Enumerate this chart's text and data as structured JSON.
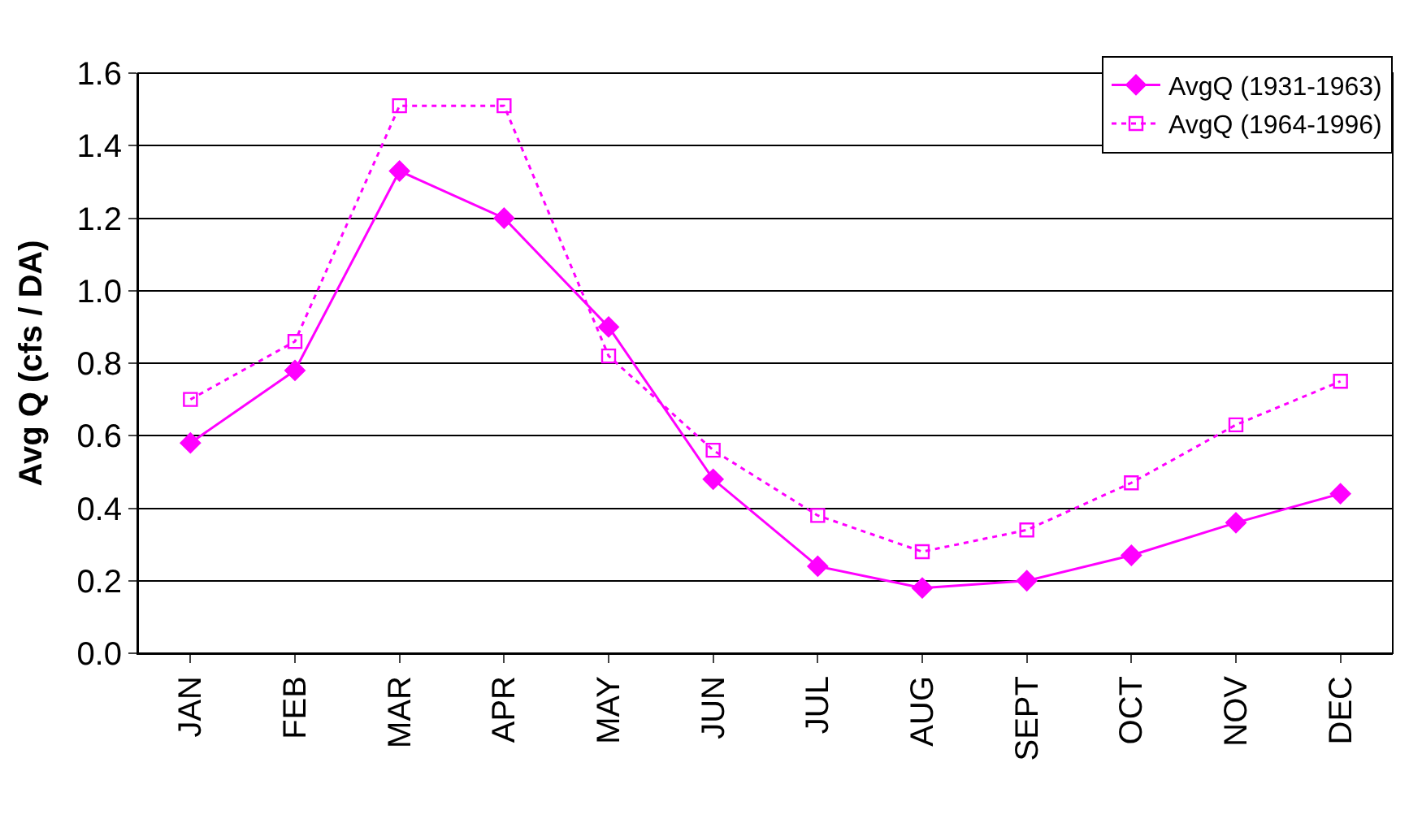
{
  "chart_data": {
    "type": "line",
    "ylabel": "Avg Q (cfs / DA)",
    "categories": [
      "JAN",
      "FEB",
      "MAR",
      "APR",
      "MAY",
      "JUN",
      "JUL",
      "AUG",
      "SEPT",
      "OCT",
      "NOV",
      "DEC"
    ],
    "series": [
      {
        "name": "AvgQ (1931-1963)",
        "color": "#ff00ff",
        "marker": "diamond",
        "line_style": "solid",
        "values": [
          0.58,
          0.78,
          1.33,
          1.2,
          0.9,
          0.48,
          0.24,
          0.18,
          0.2,
          0.27,
          0.36,
          0.44
        ]
      },
      {
        "name": "AvgQ (1964-1996)",
        "color": "#ff00ff",
        "marker": "square-open",
        "line_style": "dotted",
        "values": [
          0.7,
          0.86,
          1.51,
          1.51,
          0.82,
          0.56,
          0.38,
          0.28,
          0.34,
          0.47,
          0.63,
          0.75
        ]
      }
    ],
    "ylim": [
      0,
      1.6
    ],
    "yticks": [
      {
        "value": 0,
        "label": "0.0"
      },
      0.2,
      0.4,
      0.6,
      0.8,
      {
        "value": 1,
        "label": "1.0"
      },
      1.2,
      1.4,
      1.6
    ],
    "grid": "y",
    "legend": "top right"
  }
}
